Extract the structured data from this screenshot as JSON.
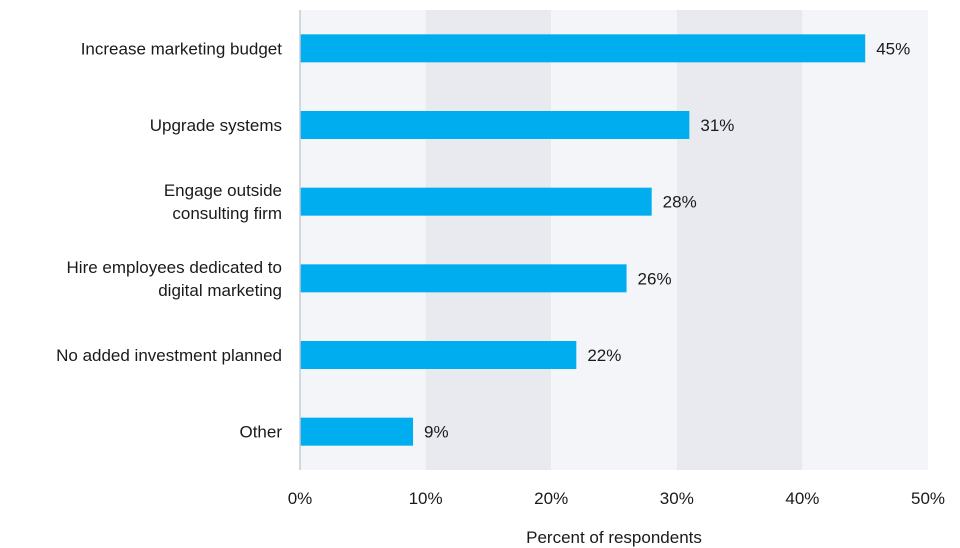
{
  "chart_data": {
    "type": "bar",
    "orientation": "horizontal",
    "categories": [
      [
        "Increase marketing budget"
      ],
      [
        "Upgrade systems"
      ],
      [
        "Engage outside",
        "consulting firm"
      ],
      [
        "Hire employees dedicated to",
        "digital marketing"
      ],
      [
        "No added investment planned"
      ],
      [
        "Other"
      ]
    ],
    "values": [
      45,
      31,
      28,
      26,
      22,
      9
    ],
    "data_labels": [
      "45%",
      "31%",
      "28%",
      "26%",
      "22%",
      "9%"
    ],
    "xlim": [
      0,
      50
    ],
    "x_ticks": [
      0,
      10,
      20,
      30,
      40,
      50
    ],
    "x_tick_labels": [
      "0%",
      "10%",
      "20%",
      "30%",
      "40%",
      "50%"
    ],
    "xlabel": "Percent of respondents",
    "grid": "alternating shaded bands",
    "colors": {
      "bar": "#00aeef",
      "band_light": "#f4f5f8",
      "band_dark": "#e8eaf0",
      "axis": "#c8ccd6",
      "text": "#1a1a1a"
    }
  }
}
